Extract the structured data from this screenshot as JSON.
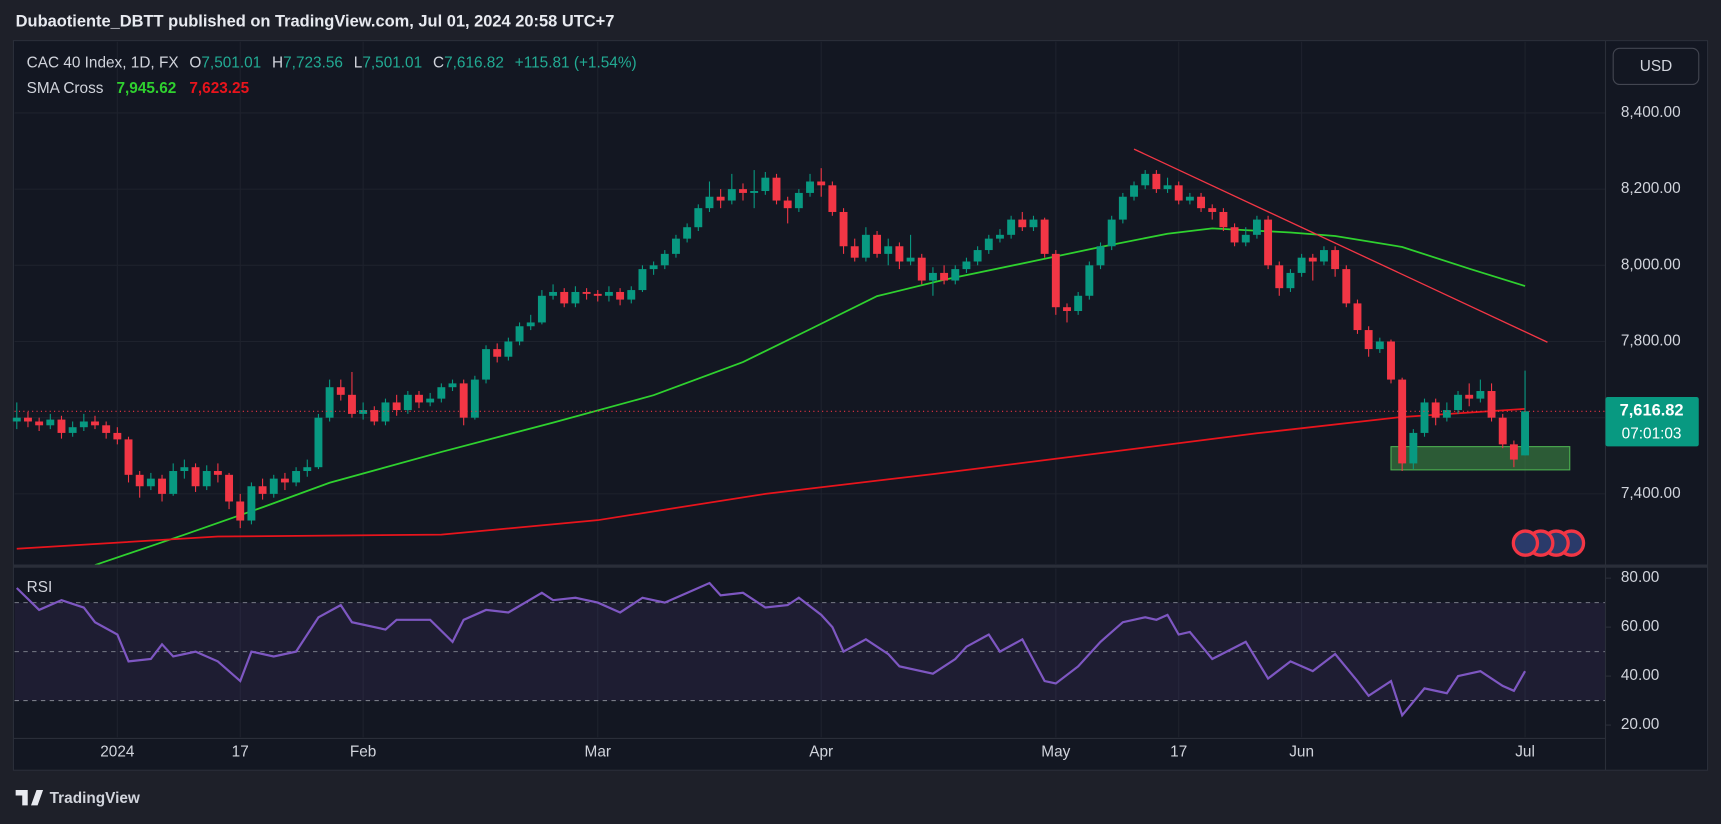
{
  "header": {
    "title": "Dubaotiente_DBTT published on TradingView.com, Jul 01, 2024 20:58 UTC+7"
  },
  "footer": {
    "brand": "TradingView"
  },
  "chart_data": {
    "type": "candlestick",
    "title": "CAC 40 Index, 1D, FX",
    "ohlc_keys": [
      "O",
      "H",
      "L",
      "C"
    ],
    "ohlc_labels": [
      "7,501.01",
      "7,723.56",
      "7,501.01",
      "7,616.82"
    ],
    "change_label": "+115.81 (+1.54%)",
    "currency": "USD",
    "countdown": "07:01:03",
    "up_color": "#089981",
    "down_color": "#f23645",
    "grid": true,
    "ohlc": [
      [
        7590,
        7640,
        7570,
        7600
      ],
      [
        7600,
        7615,
        7575,
        7590
      ],
      [
        7590,
        7600,
        7565,
        7580
      ],
      [
        7580,
        7610,
        7570,
        7595
      ],
      [
        7595,
        7605,
        7545,
        7560
      ],
      [
        7560,
        7590,
        7550,
        7575
      ],
      [
        7575,
        7610,
        7565,
        7590
      ],
      [
        7590,
        7605,
        7570,
        7580
      ],
      [
        7580,
        7590,
        7545,
        7560
      ],
      [
        7560,
        7575,
        7530,
        7543
      ],
      [
        7543,
        7550,
        7430,
        7450
      ],
      [
        7450,
        7460,
        7390,
        7420
      ],
      [
        7420,
        7455,
        7410,
        7440
      ],
      [
        7440,
        7450,
        7380,
        7400
      ],
      [
        7400,
        7480,
        7395,
        7460
      ],
      [
        7460,
        7490,
        7440,
        7470
      ],
      [
        7470,
        7480,
        7405,
        7420
      ],
      [
        7420,
        7475,
        7410,
        7460
      ],
      [
        7460,
        7480,
        7430,
        7450
      ],
      [
        7450,
        7455,
        7360,
        7380
      ],
      [
        7380,
        7400,
        7310,
        7330
      ],
      [
        7330,
        7430,
        7320,
        7420
      ],
      [
        7420,
        7440,
        7385,
        7400
      ],
      [
        7400,
        7450,
        7390,
        7440
      ],
      [
        7440,
        7455,
        7410,
        7430
      ],
      [
        7430,
        7470,
        7420,
        7460
      ],
      [
        7460,
        7490,
        7445,
        7470
      ],
      [
        7470,
        7610,
        7465,
        7600
      ],
      [
        7600,
        7700,
        7590,
        7680
      ],
      [
        7680,
        7700,
        7645,
        7660
      ],
      [
        7660,
        7720,
        7600,
        7610
      ],
      [
        7610,
        7640,
        7595,
        7620
      ],
      [
        7620,
        7630,
        7580,
        7590
      ],
      [
        7590,
        7650,
        7580,
        7640
      ],
      [
        7640,
        7660,
        7605,
        7620
      ],
      [
        7620,
        7670,
        7610,
        7660
      ],
      [
        7660,
        7670,
        7625,
        7640
      ],
      [
        7640,
        7665,
        7630,
        7650
      ],
      [
        7650,
        7690,
        7640,
        7680
      ],
      [
        7680,
        7700,
        7670,
        7690
      ],
      [
        7690,
        7700,
        7580,
        7600
      ],
      [
        7600,
        7710,
        7595,
        7700
      ],
      [
        7700,
        7790,
        7690,
        7780
      ],
      [
        7780,
        7795,
        7745,
        7760
      ],
      [
        7760,
        7810,
        7750,
        7800
      ],
      [
        7800,
        7850,
        7790,
        7840
      ],
      [
        7840,
        7870,
        7830,
        7850
      ],
      [
        7850,
        7935,
        7845,
        7920
      ],
      [
        7920,
        7950,
        7910,
        7930
      ],
      [
        7930,
        7940,
        7890,
        7900
      ],
      [
        7900,
        7945,
        7890,
        7930
      ],
      [
        7930,
        7940,
        7910,
        7925
      ],
      [
        7925,
        7935,
        7905,
        7920
      ],
      [
        7920,
        7945,
        7905,
        7930
      ],
      [
        7930,
        7940,
        7895,
        7910
      ],
      [
        7910,
        7945,
        7900,
        7935
      ],
      [
        7935,
        8000,
        7930,
        7990
      ],
      [
        7990,
        8010,
        7975,
        8000
      ],
      [
        8000,
        8040,
        7990,
        8030
      ],
      [
        8030,
        8080,
        8020,
        8070
      ],
      [
        8070,
        8110,
        8060,
        8100
      ],
      [
        8100,
        8160,
        8090,
        8150
      ],
      [
        8150,
        8220,
        8140,
        8180
      ],
      [
        8180,
        8200,
        8150,
        8170
      ],
      [
        8170,
        8240,
        8160,
        8200
      ],
      [
        8200,
        8215,
        8170,
        8190
      ],
      [
        8190,
        8250,
        8150,
        8195
      ],
      [
        8195,
        8245,
        8185,
        8230
      ],
      [
        8230,
        8240,
        8160,
        8170
      ],
      [
        8170,
        8180,
        8110,
        8150
      ],
      [
        8150,
        8200,
        8140,
        8190
      ],
      [
        8190,
        8240,
        8180,
        8220
      ],
      [
        8220,
        8255,
        8180,
        8210
      ],
      [
        8210,
        8220,
        8130,
        8140
      ],
      [
        8140,
        8150,
        8030,
        8050
      ],
      [
        8050,
        8070,
        8010,
        8020
      ],
      [
        8020,
        8100,
        8010,
        8080
      ],
      [
        8080,
        8090,
        8020,
        8030
      ],
      [
        8030,
        8070,
        8000,
        8050
      ],
      [
        8050,
        8060,
        7990,
        8010
      ],
      [
        8010,
        8080,
        8000,
        8020
      ],
      [
        8020,
        8030,
        7950,
        7960
      ],
      [
        7960,
        7995,
        7920,
        7980
      ],
      [
        7980,
        8000,
        7950,
        7960
      ],
      [
        7960,
        8000,
        7950,
        7990
      ],
      [
        7990,
        8020,
        7980,
        8010
      ],
      [
        8010,
        8050,
        8000,
        8040
      ],
      [
        8040,
        8080,
        8030,
        8070
      ],
      [
        8070,
        8095,
        8060,
        8080
      ],
      [
        8080,
        8130,
        8070,
        8120
      ],
      [
        8120,
        8140,
        8090,
        8100
      ],
      [
        8100,
        8130,
        8090,
        8120
      ],
      [
        8120,
        8125,
        8020,
        8030
      ],
      [
        8030,
        8040,
        7870,
        7890
      ],
      [
        7890,
        7900,
        7850,
        7880
      ],
      [
        7880,
        7930,
        7870,
        7920
      ],
      [
        7920,
        8010,
        7910,
        8000
      ],
      [
        8000,
        8060,
        7990,
        8050
      ],
      [
        8050,
        8130,
        8040,
        8120
      ],
      [
        8120,
        8190,
        8110,
        8180
      ],
      [
        8180,
        8220,
        8170,
        8210
      ],
      [
        8210,
        8250,
        8200,
        8240
      ],
      [
        8240,
        8250,
        8190,
        8200
      ],
      [
        8200,
        8230,
        8190,
        8210
      ],
      [
        8210,
        8220,
        8160,
        8170
      ],
      [
        8170,
        8190,
        8160,
        8180
      ],
      [
        8180,
        8190,
        8140,
        8150
      ],
      [
        8150,
        8160,
        8120,
        8140
      ],
      [
        8140,
        8150,
        8090,
        8100
      ],
      [
        8100,
        8110,
        8050,
        8060
      ],
      [
        8060,
        8100,
        8050,
        8080
      ],
      [
        8080,
        8130,
        8070,
        8120
      ],
      [
        8120,
        8130,
        7990,
        8000
      ],
      [
        8000,
        8010,
        7920,
        7940
      ],
      [
        7940,
        7990,
        7930,
        7980
      ],
      [
        7980,
        8030,
        7970,
        8020
      ],
      [
        8020,
        8030,
        7960,
        8010
      ],
      [
        8010,
        8050,
        8000,
        8040
      ],
      [
        8040,
        8050,
        7970,
        7990
      ],
      [
        7990,
        8000,
        7890,
        7900
      ],
      [
        7900,
        7910,
        7820,
        7830
      ],
      [
        7830,
        7840,
        7760,
        7780
      ],
      [
        7780,
        7810,
        7770,
        7800
      ],
      [
        7800,
        7805,
        7690,
        7700
      ],
      [
        7700,
        7705,
        7460,
        7480
      ],
      [
        7480,
        7570,
        7465,
        7560
      ],
      [
        7560,
        7650,
        7550,
        7640
      ],
      [
        7640,
        7650,
        7580,
        7600
      ],
      [
        7600,
        7640,
        7590,
        7620
      ],
      [
        7620,
        7670,
        7610,
        7660
      ],
      [
        7660,
        7690,
        7630,
        7650
      ],
      [
        7650,
        7700,
        7640,
        7670
      ],
      [
        7670,
        7690,
        7590,
        7600
      ],
      [
        7600,
        7610,
        7520,
        7530
      ],
      [
        7530,
        7540,
        7470,
        7490
      ],
      [
        7501.01,
        7723.56,
        7501.01,
        7616.82
      ]
    ],
    "xlim": [
      -0.2,
      142.2
    ],
    "xticks": [
      {
        "value": 9,
        "label": "2024"
      },
      {
        "value": 20,
        "label": "17"
      },
      {
        "value": 31,
        "label": "Feb"
      },
      {
        "value": 52,
        "label": "Mar"
      },
      {
        "value": 72,
        "label": "Apr"
      },
      {
        "value": 93,
        "label": "May"
      },
      {
        "value": 104,
        "label": "17"
      },
      {
        "value": 115,
        "label": "Jun"
      },
      {
        "value": 135,
        "label": "Jul"
      }
    ],
    "ylim": [
      7216,
      8587
    ],
    "yticks": [
      {
        "value": 7400,
        "label": "7,400.00"
      },
      {
        "value": 7600,
        "label": "7,600.00"
      },
      {
        "value": 7800,
        "label": "7,800.00"
      },
      {
        "value": 8000,
        "label": "8,000.00"
      },
      {
        "value": 8200,
        "label": "8,200.00"
      },
      {
        "value": 8400,
        "label": "8,400.00"
      }
    ],
    "indicator": "SMA Cross",
    "sma": [
      {
        "color": "#2fd12f",
        "value_label": "7,945.62",
        "x": [
          7,
          15,
          22,
          28,
          38,
          48,
          57,
          65,
          71,
          77,
          83,
          91,
          97,
          103,
          107,
          114,
          118,
          124,
          130,
          135
        ],
        "values": [
          7213,
          7293,
          7365,
          7429,
          7510,
          7587,
          7659,
          7746,
          7832,
          7919,
          7962,
          8011,
          8048,
          8083,
          8097,
          8086,
          8077,
          8048,
          7991,
          7945.62
        ]
      },
      {
        "color": "#e8141c",
        "value_label": "7,623.25",
        "x": [
          0,
          18,
          38,
          52,
          67,
          82,
          97,
          111,
          124,
          135
        ],
        "values": [
          7256,
          7288,
          7293,
          7331,
          7400,
          7452,
          7507,
          7559,
          7602,
          7623.25
        ]
      }
    ],
    "trendline": {
      "color": "#f23645",
      "x": [
        100,
        137
      ],
      "values": [
        8305,
        7798
      ]
    },
    "zone": {
      "color": "#4caf50",
      "x": [
        123,
        139
      ],
      "values": [
        7463,
        7524
      ]
    },
    "rsi": {
      "name": "RSI",
      "color": "#7e57c2",
      "x": [
        0,
        2,
        4,
        6,
        7,
        9,
        10,
        12,
        13,
        14,
        16,
        18,
        20,
        21,
        23,
        25,
        27,
        29,
        30,
        33,
        34,
        37,
        39,
        40,
        42,
        44,
        47,
        48,
        50,
        52,
        54,
        56,
        58,
        60,
        62,
        63,
        65,
        67,
        69,
        70,
        72,
        73,
        74,
        76,
        78,
        79,
        82,
        84,
        85,
        87,
        88,
        90,
        92,
        93,
        95,
        97,
        99,
        101,
        102,
        103,
        104,
        105,
        107,
        110,
        112,
        114,
        116,
        118,
        120,
        121,
        123,
        124,
        126,
        128,
        129,
        131,
        133,
        134,
        135
      ],
      "values": [
        76,
        67,
        71,
        68,
        62,
        57,
        46,
        47,
        53,
        48,
        50,
        46,
        38,
        50,
        48,
        50,
        64,
        69,
        62,
        59,
        63,
        63,
        54,
        63,
        67,
        66,
        74,
        71,
        72,
        70,
        66,
        72,
        70,
        74,
        78,
        73,
        74,
        68,
        69,
        72,
        65,
        60,
        50,
        55,
        49,
        44,
        41,
        47,
        52,
        57,
        50,
        55,
        38,
        37,
        44,
        54,
        62,
        64,
        63,
        65,
        57,
        58,
        47,
        54,
        39,
        46,
        42,
        49,
        38,
        32,
        38,
        24,
        35,
        33,
        40,
        42,
        36,
        34,
        42
      ],
      "ylim": [
        15,
        84
      ],
      "yticks": [
        {
          "value": 20,
          "label": "20.00"
        },
        {
          "value": 40,
          "label": "40.00"
        },
        {
          "value": 60,
          "label": "60.00"
        },
        {
          "value": 80,
          "label": "80.00"
        }
      ],
      "levels": [
        70,
        50,
        30
      ]
    }
  }
}
